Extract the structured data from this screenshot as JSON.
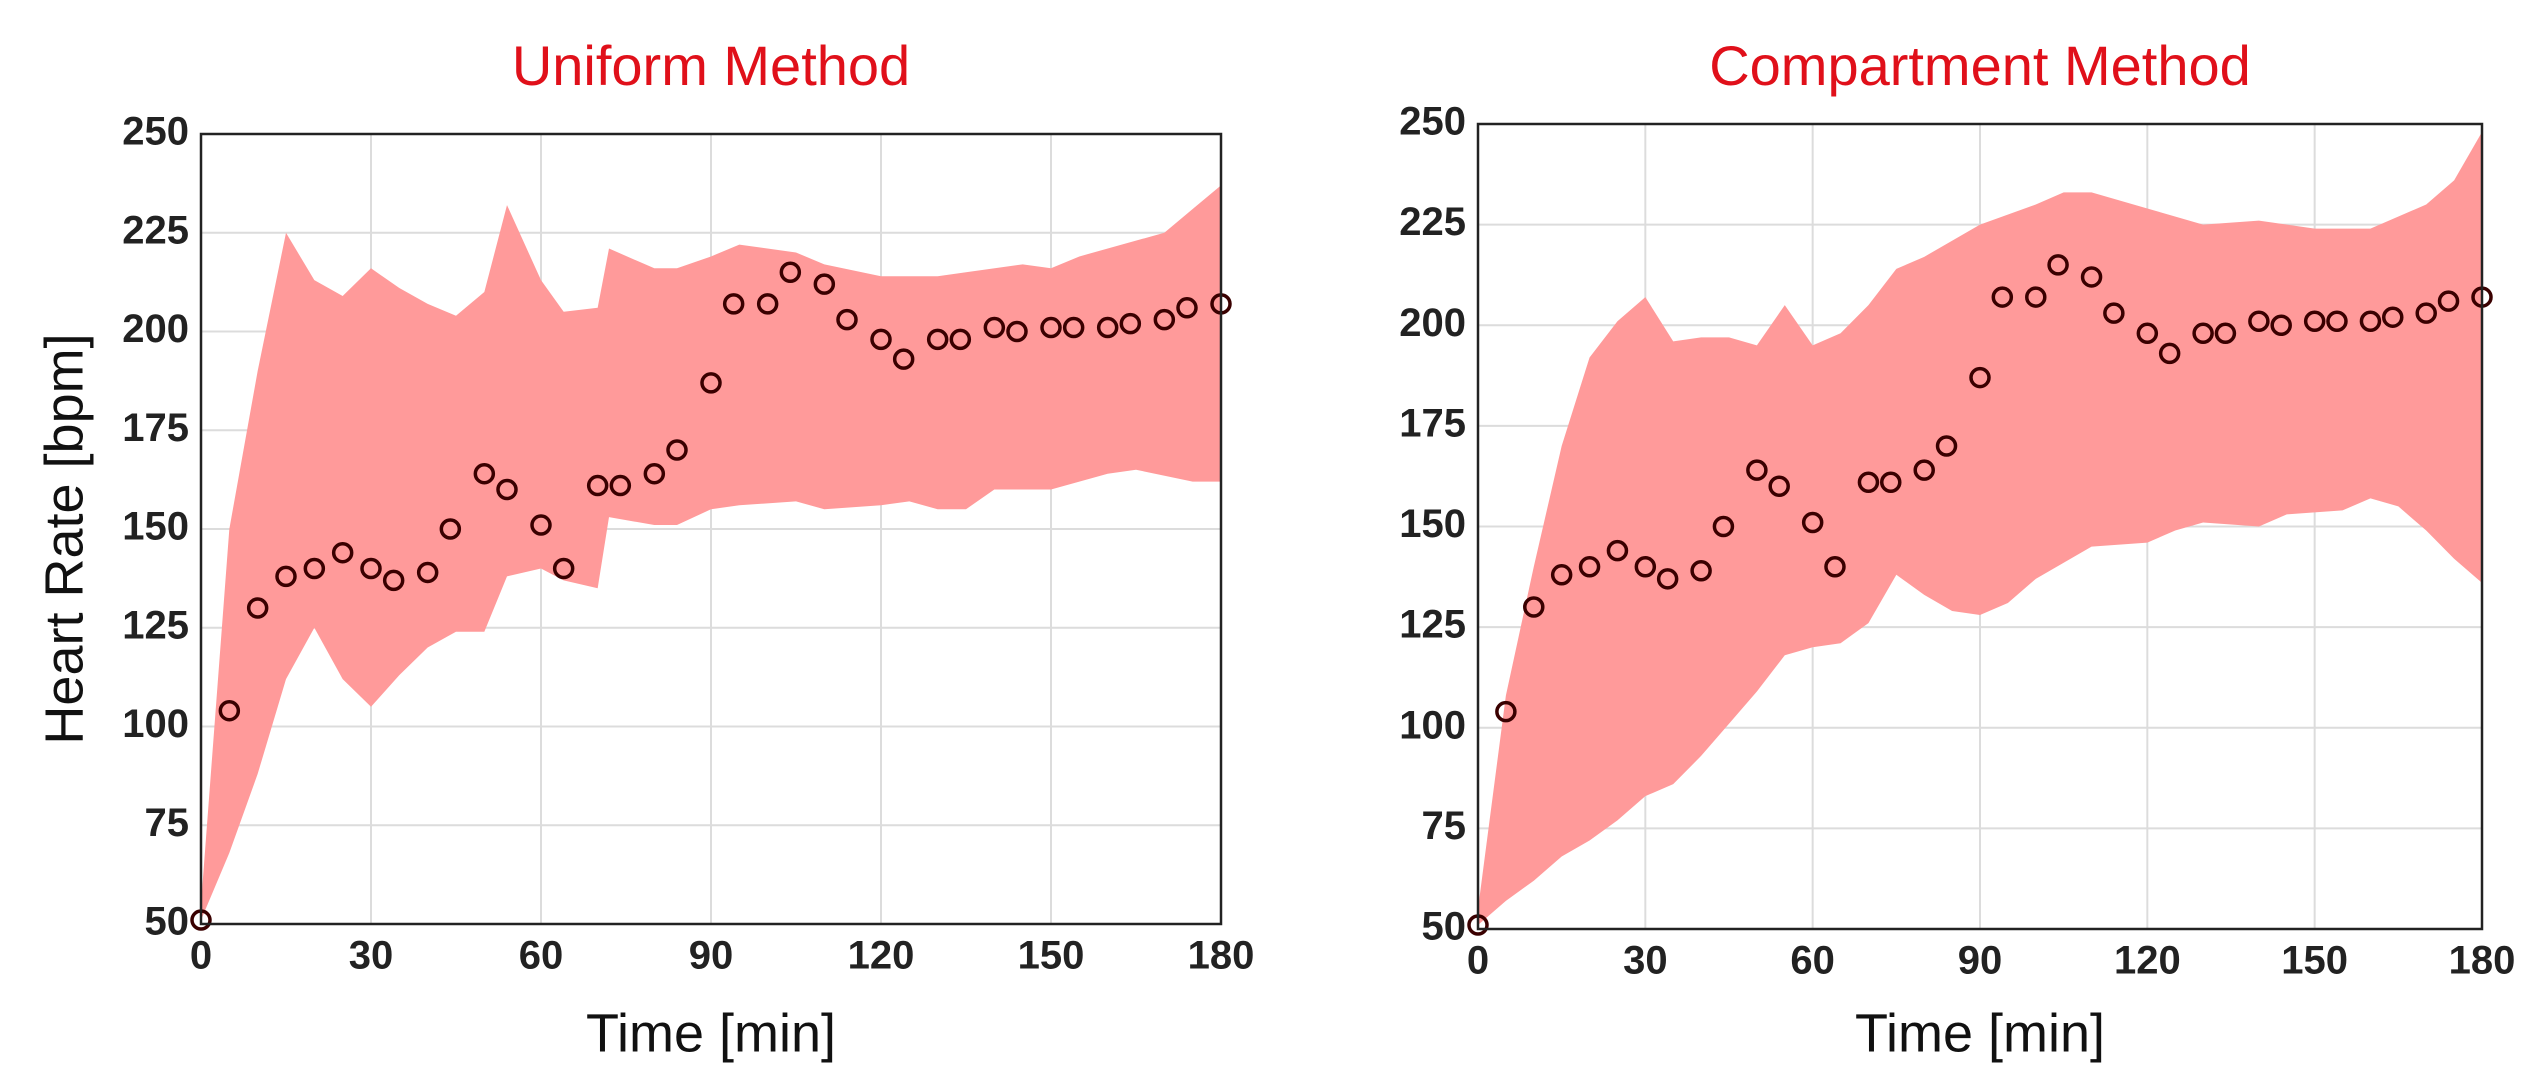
{
  "chart_data": [
    {
      "type": "scatter",
      "title": "Uniform Method",
      "xlabel": "Time [min]",
      "ylabel": "Heart Rate [bpm]",
      "xlim": [
        0,
        180
      ],
      "ylim": [
        50,
        250
      ],
      "xticks": [
        0,
        30,
        60,
        90,
        120,
        150,
        180
      ],
      "yticks": [
        50,
        75,
        100,
        125,
        150,
        175,
        200,
        225,
        250
      ],
      "grid": true,
      "marker_color": "#3a0000",
      "band_color": "#ff9a9a",
      "x": [
        0,
        5,
        10,
        15,
        20,
        25,
        30,
        34,
        40,
        44,
        50,
        54,
        60,
        64,
        70,
        74,
        80,
        84,
        90,
        94,
        100,
        104,
        110,
        114,
        120,
        124,
        130,
        134,
        140,
        144,
        150,
        154,
        160,
        164,
        170,
        174,
        180
      ],
      "values": [
        51,
        104,
        130,
        138,
        140,
        144,
        140,
        137,
        139,
        150,
        164,
        160,
        151,
        140,
        161,
        161,
        164,
        170,
        187,
        207,
        207,
        215,
        212,
        203,
        198,
        193,
        198,
        198,
        201,
        200,
        201,
        201,
        201,
        202,
        203,
        206,
        207
      ],
      "band_upper": {
        "x": [
          0,
          5,
          10,
          15,
          20,
          25,
          30,
          35,
          40,
          45,
          50,
          54,
          60,
          64,
          70,
          72,
          80,
          84,
          90,
          95,
          105,
          110,
          120,
          130,
          135,
          145,
          150,
          155,
          170,
          175,
          180
        ],
        "values": [
          55,
          150,
          190,
          225,
          213,
          209,
          216,
          211,
          207,
          204,
          210,
          232,
          213,
          205,
          206,
          221,
          216,
          216,
          219,
          222,
          220,
          217,
          214,
          214,
          215,
          217,
          216,
          219,
          225,
          231,
          237
        ]
      },
      "band_lower": {
        "x": [
          0,
          5,
          10,
          15,
          20,
          25,
          30,
          35,
          40,
          45,
          50,
          54,
          60,
          64,
          70,
          72,
          80,
          84,
          90,
          95,
          105,
          110,
          120,
          125,
          130,
          135,
          140,
          150,
          160,
          165,
          175,
          180
        ],
        "values": [
          51,
          68,
          88,
          112,
          125,
          112,
          105,
          113,
          120,
          124,
          124,
          138,
          140,
          137,
          135,
          153,
          151,
          151,
          155,
          156,
          157,
          155,
          156,
          157,
          155,
          155,
          160,
          160,
          164,
          165,
          162,
          162
        ]
      }
    },
    {
      "type": "scatter",
      "title": "Compartment Method",
      "xlabel": "Time [min]",
      "xlim": [
        0,
        180
      ],
      "ylim": [
        50,
        250
      ],
      "xticks": [
        0,
        30,
        60,
        90,
        120,
        150,
        180
      ],
      "yticks": [
        50,
        75,
        100,
        125,
        150,
        175,
        200,
        225,
        250
      ],
      "grid": true,
      "marker_color": "#3a0000",
      "band_color": "#ff9a9a",
      "x": [
        0,
        5,
        10,
        15,
        20,
        25,
        30,
        34,
        40,
        44,
        50,
        54,
        60,
        64,
        70,
        74,
        80,
        84,
        90,
        94,
        100,
        104,
        110,
        114,
        120,
        124,
        130,
        134,
        140,
        144,
        150,
        154,
        160,
        164,
        170,
        174,
        180
      ],
      "values": [
        51,
        104,
        130,
        138,
        140,
        144,
        140,
        137,
        139,
        150,
        164,
        160,
        151,
        140,
        161,
        161,
        164,
        170,
        187,
        207,
        207,
        215,
        212,
        203,
        198,
        193,
        198,
        198,
        201,
        200,
        201,
        201,
        201,
        202,
        203,
        206,
        207
      ],
      "band_upper": {
        "x": [
          0,
          5,
          10,
          15,
          20,
          25,
          30,
          35,
          40,
          45,
          50,
          55,
          60,
          65,
          70,
          75,
          80,
          90,
          100,
          105,
          110,
          120,
          130,
          140,
          150,
          160,
          170,
          175,
          180
        ],
        "values": [
          55,
          108,
          140,
          170,
          192,
          201,
          207,
          196,
          197,
          197,
          195,
          205,
          195,
          198,
          205,
          214,
          217,
          225,
          230,
          233,
          233,
          229,
          225,
          226,
          224,
          224,
          230,
          236,
          248
        ]
      },
      "band_lower": {
        "x": [
          0,
          5,
          10,
          15,
          20,
          25,
          30,
          35,
          40,
          45,
          50,
          55,
          60,
          65,
          70,
          75,
          80,
          85,
          90,
          95,
          100,
          105,
          110,
          120,
          125,
          130,
          140,
          145,
          155,
          160,
          165,
          170,
          175,
          180
        ],
        "values": [
          51,
          57,
          62,
          68,
          72,
          77,
          83,
          86,
          93,
          101,
          109,
          118,
          120,
          121,
          126,
          138,
          133,
          129,
          128,
          131,
          137,
          141,
          145,
          146,
          149,
          151,
          150,
          153,
          154,
          157,
          155,
          149,
          142,
          136
        ]
      }
    }
  ]
}
